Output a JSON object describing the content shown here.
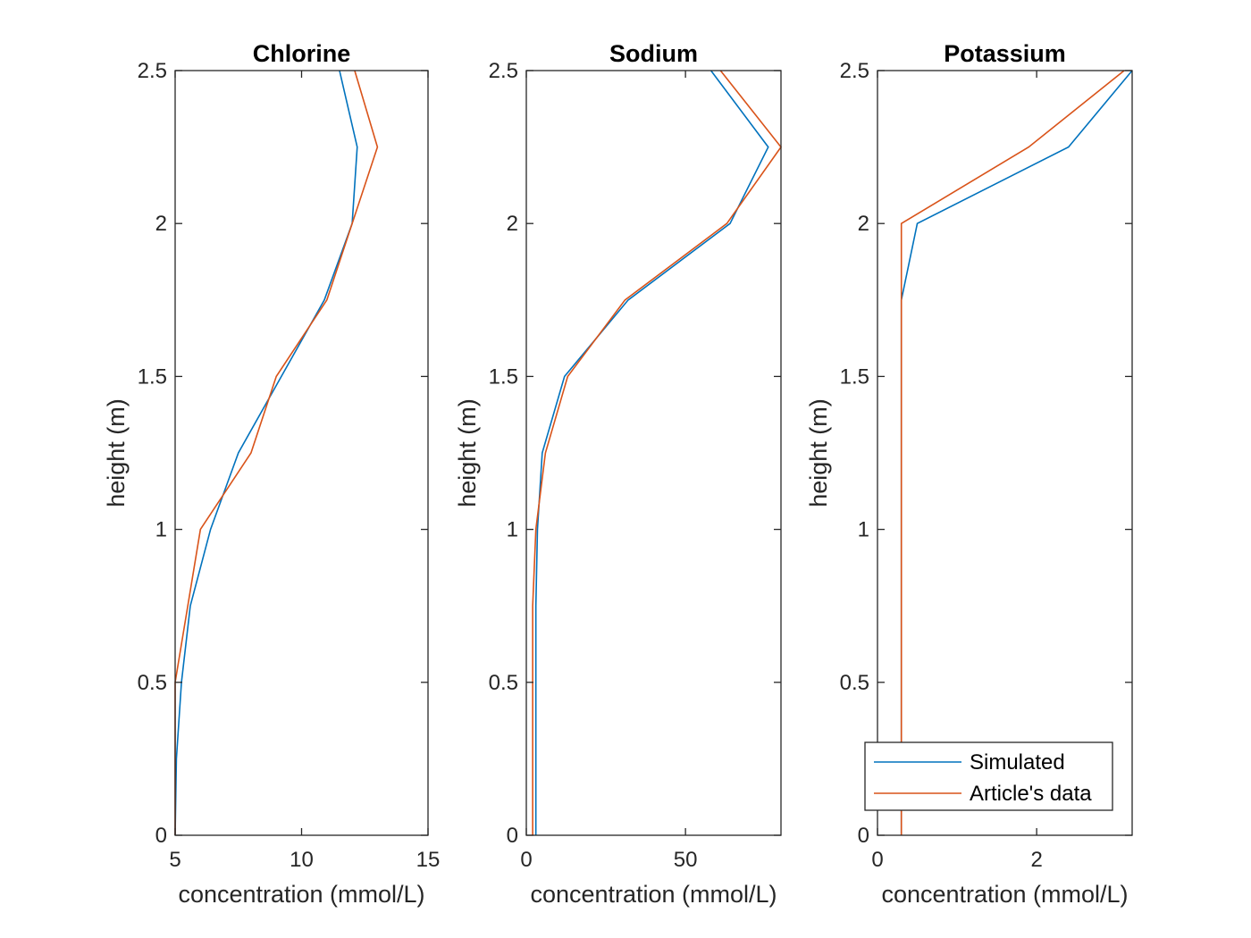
{
  "chart_data": [
    {
      "type": "line",
      "title": "Chlorine",
      "xlabel": "concentration (mmol/L)",
      "ylabel": "height (m)",
      "xlim": [
        5,
        15
      ],
      "ylim": [
        0,
        2.5
      ],
      "xticks": [
        5,
        10,
        15
      ],
      "xtick_labels": [
        "5",
        "10",
        "15"
      ],
      "yticks": [
        0,
        0.5,
        1,
        1.5,
        2,
        2.5
      ],
      "ytick_labels": [
        "0",
        "0.5",
        "1",
        "1.5",
        "2",
        "2.5"
      ],
      "series": [
        {
          "color": "#0072BD",
          "x": [
            5.0,
            5.05,
            5.25,
            5.6,
            6.4,
            7.5,
            9.2,
            10.9,
            12.0,
            12.2,
            11.5
          ],
          "y": [
            0,
            0.25,
            0.5,
            0.75,
            1.0,
            1.25,
            1.5,
            1.75,
            2.0,
            2.25,
            2.5
          ]
        },
        {
          "color": "#D95319",
          "x": [
            5.0,
            5.0,
            5.0,
            5.5,
            6.0,
            8.0,
            9.0,
            11.0,
            12.0,
            13.0,
            12.1
          ],
          "y": [
            0,
            0.25,
            0.5,
            0.75,
            1.0,
            1.25,
            1.5,
            1.75,
            2.0,
            2.25,
            2.5
          ]
        }
      ],
      "legend": null
    },
    {
      "type": "line",
      "title": "Sodium",
      "xlabel": "concentration (mmol/L)",
      "ylabel": "height (m)",
      "xlim": [
        0,
        80
      ],
      "ylim": [
        0,
        2.5
      ],
      "xticks": [
        0,
        50
      ],
      "xtick_labels": [
        "0",
        "50"
      ],
      "yticks": [
        0,
        0.5,
        1,
        1.5,
        2,
        2.5
      ],
      "ytick_labels": [
        "0",
        "0.5",
        "1",
        "1.5",
        "2",
        "2.5"
      ],
      "series": [
        {
          "color": "#0072BD",
          "x": [
            3.0,
            3.0,
            3.0,
            3.0,
            3.5,
            5.0,
            12.0,
            32.0,
            64.0,
            76.0,
            58.0
          ],
          "y": [
            0,
            0.25,
            0.5,
            0.75,
            1.0,
            1.25,
            1.5,
            1.75,
            2.0,
            2.25,
            2.5
          ]
        },
        {
          "color": "#D95319",
          "x": [
            2.0,
            2.0,
            2.0,
            2.0,
            3.0,
            6.0,
            13.0,
            31.0,
            63.0,
            80.0,
            61.0
          ],
          "y": [
            0,
            0.25,
            0.5,
            0.75,
            1.0,
            1.25,
            1.5,
            1.75,
            2.0,
            2.25,
            2.5
          ]
        }
      ],
      "legend": null
    },
    {
      "type": "line",
      "title": "Potassium",
      "xlabel": "concentration (mmol/L)",
      "ylabel": "height (m)",
      "xlim": [
        0,
        3.2
      ],
      "ylim": [
        0,
        2.5
      ],
      "xticks": [
        0,
        2
      ],
      "xtick_labels": [
        "0",
        "2"
      ],
      "yticks": [
        0,
        0.5,
        1,
        1.5,
        2,
        2.5
      ],
      "ytick_labels": [
        "0",
        "0.5",
        "1",
        "1.5",
        "2",
        "2.5"
      ],
      "series": [
        {
          "name": "Simulated",
          "color": "#0072BD",
          "x": [
            0.3,
            0.3,
            0.3,
            0.3,
            0.3,
            0.3,
            0.3,
            0.3,
            0.5,
            2.4,
            3.2
          ],
          "y": [
            0,
            0.25,
            0.5,
            0.75,
            1.0,
            1.25,
            1.5,
            1.75,
            2.0,
            2.25,
            2.5
          ]
        },
        {
          "name": "Article's data",
          "color": "#D95319",
          "x": [
            0.3,
            0.3,
            0.3,
            0.3,
            0.3,
            0.3,
            0.3,
            0.3,
            0.3,
            1.9,
            3.1
          ],
          "y": [
            0,
            0.25,
            0.5,
            0.75,
            1.0,
            1.25,
            1.5,
            1.75,
            2.0,
            2.25,
            2.5
          ]
        }
      ],
      "legend": "bottom-right"
    }
  ]
}
